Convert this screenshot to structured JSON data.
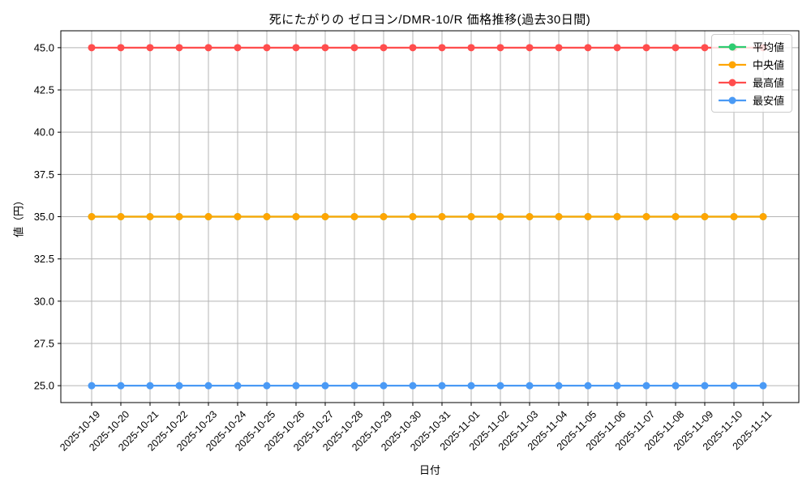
{
  "chart_data": {
    "type": "line",
    "title": "死にたがりの ゼロヨン/DMR-10/R 価格推移(過去30日間)",
    "xlabel": "日付",
    "ylabel": "値（円）",
    "x": [
      "2025-10-19",
      "2025-10-20",
      "2025-10-21",
      "2025-10-22",
      "2025-10-23",
      "2025-10-24",
      "2025-10-25",
      "2025-10-26",
      "2025-10-27",
      "2025-10-28",
      "2025-10-29",
      "2025-10-30",
      "2025-10-31",
      "2025-11-01",
      "2025-11-02",
      "2025-11-03",
      "2025-11-04",
      "2025-11-05",
      "2025-11-06",
      "2025-11-07",
      "2025-11-08",
      "2025-11-09",
      "2025-11-10",
      "2025-11-11"
    ],
    "ylim": [
      24,
      46
    ],
    "yticks": [
      25.0,
      27.5,
      30.0,
      32.5,
      35.0,
      37.5,
      40.0,
      42.5,
      45.0
    ],
    "grid": true,
    "grid_color": "#b5b5b5",
    "frame_color": "#000000",
    "legend": {
      "position": "upper right"
    },
    "series": [
      {
        "id": "mean",
        "name": "平均値",
        "color": "#2ecc71",
        "values": [
          35,
          35,
          35,
          35,
          35,
          35,
          35,
          35,
          35,
          35,
          35,
          35,
          35,
          35,
          35,
          35,
          35,
          35,
          35,
          35,
          35,
          35,
          35,
          35
        ]
      },
      {
        "id": "median",
        "name": "中央値",
        "color": "#ffa502",
        "values": [
          35,
          35,
          35,
          35,
          35,
          35,
          35,
          35,
          35,
          35,
          35,
          35,
          35,
          35,
          35,
          35,
          35,
          35,
          35,
          35,
          35,
          35,
          35,
          35
        ]
      },
      {
        "id": "max",
        "name": "最高値",
        "color": "#ff4d4d",
        "values": [
          45,
          45,
          45,
          45,
          45,
          45,
          45,
          45,
          45,
          45,
          45,
          45,
          45,
          45,
          45,
          45,
          45,
          45,
          45,
          45,
          45,
          45,
          45,
          45
        ]
      },
      {
        "id": "min",
        "name": "最安値",
        "color": "#4a9af5",
        "values": [
          25,
          25,
          25,
          25,
          25,
          25,
          25,
          25,
          25,
          25,
          25,
          25,
          25,
          25,
          25,
          25,
          25,
          25,
          25,
          25,
          25,
          25,
          25,
          25
        ]
      }
    ]
  }
}
